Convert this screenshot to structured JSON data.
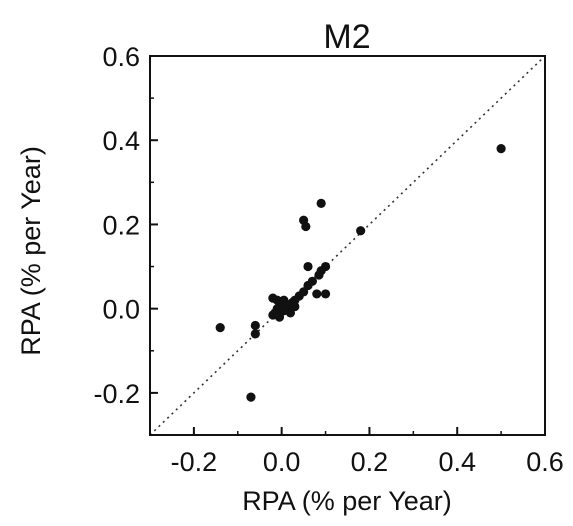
{
  "chart_data": {
    "type": "scatter",
    "title": "M2",
    "xlabel": "RPA (% per Year)",
    "ylabel": "RPA (% per Year)",
    "xlim": [
      -0.3,
      0.6
    ],
    "ylim": [
      -0.3,
      0.6
    ],
    "xticks": [
      -0.2,
      0.0,
      0.2,
      0.4,
      0.6
    ],
    "yticks": [
      -0.2,
      0.0,
      0.2,
      0.4,
      0.6
    ],
    "xtick_labels": [
      "-0.2",
      "0.0",
      "0.2",
      "0.4",
      "0.6"
    ],
    "ytick_labels": [
      "-0.2",
      "0.0",
      "0.2",
      "0.4",
      "0.6"
    ],
    "reference_line": "y = x (dotted)",
    "grid": false,
    "legend": "none",
    "marker_color": "#111111",
    "points": [
      {
        "x": 0.5,
        "y": 0.38
      },
      {
        "x": 0.09,
        "y": 0.25
      },
      {
        "x": 0.05,
        "y": 0.21
      },
      {
        "x": 0.055,
        "y": 0.195
      },
      {
        "x": 0.18,
        "y": 0.185
      },
      {
        "x": 0.1,
        "y": 0.1
      },
      {
        "x": 0.06,
        "y": 0.1
      },
      {
        "x": 0.09,
        "y": 0.09
      },
      {
        "x": 0.085,
        "y": 0.08
      },
      {
        "x": 0.07,
        "y": 0.065
      },
      {
        "x": 0.06,
        "y": 0.055
      },
      {
        "x": 0.08,
        "y": 0.035
      },
      {
        "x": 0.1,
        "y": 0.035
      },
      {
        "x": 0.05,
        "y": 0.04
      },
      {
        "x": 0.04,
        "y": 0.03
      },
      {
        "x": 0.03,
        "y": 0.02
      },
      {
        "x": 0.025,
        "y": 0.015
      },
      {
        "x": 0.02,
        "y": 0.01
      },
      {
        "x": 0.015,
        "y": 0.005
      },
      {
        "x": 0.01,
        "y": 0.0
      },
      {
        "x": 0.005,
        "y": -0.005
      },
      {
        "x": 0.0,
        "y": 0.0
      },
      {
        "x": -0.005,
        "y": 0.015
      },
      {
        "x": -0.01,
        "y": 0.02
      },
      {
        "x": 0.005,
        "y": 0.02
      },
      {
        "x": -0.02,
        "y": 0.025
      },
      {
        "x": 0.01,
        "y": 0.01
      },
      {
        "x": -0.01,
        "y": 0.0
      },
      {
        "x": -0.015,
        "y": -0.01
      },
      {
        "x": -0.02,
        "y": -0.015
      },
      {
        "x": -0.005,
        "y": -0.02
      },
      {
        "x": 0.02,
        "y": -0.01
      },
      {
        "x": 0.03,
        "y": 0.005
      },
      {
        "x": -0.06,
        "y": -0.04
      },
      {
        "x": -0.06,
        "y": -0.06
      },
      {
        "x": -0.14,
        "y": -0.045
      },
      {
        "x": -0.07,
        "y": -0.21
      }
    ]
  }
}
